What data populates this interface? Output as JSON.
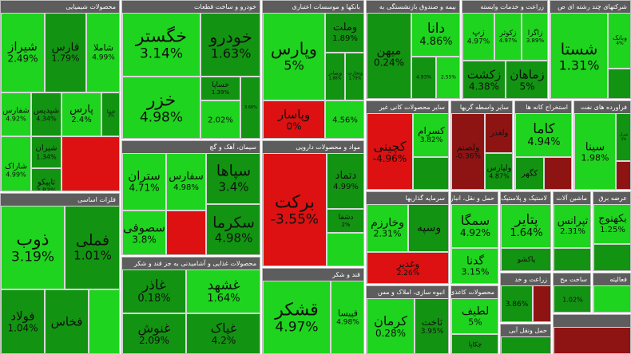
{
  "colors": {
    "strong_up": "#1ed41e",
    "up": "#129412",
    "strong_down": "#dd1111",
    "down": "#8e1414",
    "header": "#5d5d5d",
    "separator": "#dcdcdc"
  },
  "groups": [
    {
      "id": "g1",
      "title": "محصولات شیمیایی",
      "tiles": [
        {
          "n": "شیراز",
          "p": "2.49%",
          "c": "strong_up"
        },
        {
          "n": "فارس",
          "p": "1.79%",
          "c": "up"
        },
        {
          "n": "شاملا",
          "p": "4.99%",
          "c": "strong_up"
        },
        {
          "n": "شفارس",
          "p": "4.92%",
          "c": "strong_up"
        },
        {
          "n": "شپدیس",
          "p": "4.34%",
          "c": "up"
        },
        {
          "n": "پارس",
          "p": "2.4%",
          "c": "strong_up"
        },
        {
          "n": "شپنا",
          "p": "3%",
          "c": "up"
        },
        {
          "n": "شاراک",
          "p": "4.99%",
          "c": "strong_up"
        },
        {
          "n": "شیران",
          "p": "1.34%",
          "c": "up"
        },
        {
          "n": "تاپیکو",
          "p": "2.83%",
          "c": "up"
        },
        {
          "n": "",
          "p": "",
          "c": "strong_down"
        }
      ]
    },
    {
      "id": "g2",
      "title": "خودرو و ساخت قطعات",
      "tiles": [
        {
          "n": "خگستر",
          "p": "3.14%",
          "c": "strong_up"
        },
        {
          "n": "خزر",
          "p": "4.98%",
          "c": "strong_up"
        },
        {
          "n": "خودرو",
          "p": "1.63%",
          "c": "up"
        },
        {
          "n": "خساپا",
          "p": "1.39%",
          "c": "up"
        },
        {
          "n": "",
          "p": "2.02%",
          "c": "strong_up"
        },
        {
          "n": "",
          "p": "3.66%",
          "c": "up"
        }
      ]
    },
    {
      "id": "g3",
      "title": "بانکها و موسسات اعتباری",
      "tiles": [
        {
          "n": "وپارس",
          "p": "5%",
          "c": "strong_up"
        },
        {
          "n": "وملت",
          "p": "1.89%",
          "c": "up"
        },
        {
          "n": "وبصادر",
          "p": "1.88%",
          "c": "up"
        },
        {
          "n": "وتجارت",
          "p": "1.79%",
          "c": "up"
        },
        {
          "n": "وپاسار",
          "p": "0%",
          "c": "strong_down"
        },
        {
          "n": "",
          "p": "4.56%",
          "c": "strong_up"
        }
      ]
    },
    {
      "id": "g4",
      "title": "بیمه و صندوق بازنشستگی به",
      "tiles": [
        {
          "n": "میهن",
          "p": "0.24%",
          "c": "up"
        },
        {
          "n": "دانا",
          "p": "4.86%",
          "c": "strong_up"
        },
        {
          "n": "",
          "p": "4.93%",
          "c": "up"
        },
        {
          "n": "",
          "p": "2.55%",
          "c": "strong_up"
        }
      ]
    },
    {
      "id": "g5",
      "title": "زراعت و خدمات وابسته",
      "tiles": [
        {
          "n": "زپ",
          "p": "4.97%",
          "c": "strong_up"
        },
        {
          "n": "زکوثر",
          "p": "4.97%",
          "c": "strong_up"
        },
        {
          "n": "زاگرا",
          "p": "3.89%",
          "c": "strong_up"
        },
        {
          "n": "زکشت",
          "p": "4.38%",
          "c": "up"
        },
        {
          "n": "زماهان",
          "p": "5%",
          "c": "up"
        }
      ]
    },
    {
      "id": "g6",
      "title": "شرکتهای چند رشته ای ص",
      "tiles": [
        {
          "n": "شستا",
          "p": "1.31%",
          "c": "strong_up"
        },
        {
          "n": "وبانک",
          "p": "4%",
          "c": "strong_up"
        },
        {
          "n": "",
          "p": "",
          "c": "up"
        }
      ]
    },
    {
      "id": "g7",
      "title": "سیمان، آهک و گچ",
      "tiles": [
        {
          "n": "ستران",
          "p": "4.71%",
          "c": "strong_up"
        },
        {
          "n": "سفارس",
          "p": "4.98%",
          "c": "strong_up"
        },
        {
          "n": "سصوفی",
          "p": "3.8%",
          "c": "strong_up"
        },
        {
          "n": "سپاها",
          "p": "3.4%",
          "c": "up"
        },
        {
          "n": "سکرما",
          "p": "4.98%",
          "c": "up"
        },
        {
          "n": "",
          "p": "",
          "c": "strong_down"
        }
      ]
    },
    {
      "id": "g8",
      "title": "مواد و محصولات دارویی",
      "tiles": [
        {
          "n": "برکت",
          "p": "-3.55%",
          "c": "strong_down"
        },
        {
          "n": "دتماد",
          "p": "4.99%",
          "c": "up"
        },
        {
          "n": "دشفا",
          "p": "2%",
          "c": "up"
        },
        {
          "n": "",
          "p": "",
          "c": "strong_up"
        }
      ]
    },
    {
      "id": "g9",
      "title": "سایر محصولات کانی غیر",
      "tiles": [
        {
          "n": "کچینی",
          "p": "-4.96%",
          "c": "strong_down"
        },
        {
          "n": "کسرام",
          "p": "3.82%",
          "c": "strong_up"
        },
        {
          "n": "",
          "p": "",
          "c": "up"
        }
      ]
    },
    {
      "id": "g10",
      "title": "سایر واسطه گریها",
      "tiles": [
        {
          "n": "ولصنم",
          "p": "-0.36%",
          "c": "down"
        },
        {
          "n": "ولغدر",
          "p": "",
          "c": "down"
        },
        {
          "n": "ولپارس",
          "p": "4.87%",
          "c": "up"
        }
      ]
    },
    {
      "id": "g11",
      "title": "استخراج کانه ها",
      "tiles": [
        {
          "n": "کاما",
          "p": "4.94%",
          "c": "strong_up"
        },
        {
          "n": "کگهر",
          "p": "",
          "c": "up"
        },
        {
          "n": "",
          "p": "",
          "c": "down"
        }
      ]
    },
    {
      "id": "g12",
      "title": "فراورده های نفت",
      "tiles": [
        {
          "n": "سینا",
          "p": "1.98%",
          "c": "strong_up"
        },
        {
          "n": "شراز",
          "p": "5%",
          "c": "up"
        },
        {
          "n": "",
          "p": "",
          "c": "down"
        }
      ]
    },
    {
      "id": "g13",
      "title": "فلزات اساسی",
      "tiles": [
        {
          "n": "ذوب",
          "p": "3.19%",
          "c": "strong_up"
        },
        {
          "n": "فملی",
          "p": "1.01%",
          "c": "up"
        },
        {
          "n": "فولاد",
          "p": "1.04%",
          "c": "up"
        },
        {
          "n": "فخاس",
          "p": "",
          "c": "up"
        },
        {
          "n": "",
          "p": "",
          "c": "strong_up"
        }
      ]
    },
    {
      "id": "g14",
      "title": "محصولات غذایی و آشامیدنی به جز قند و شکر",
      "tiles": [
        {
          "n": "غاذر",
          "p": "0.18%",
          "c": "up"
        },
        {
          "n": "غشهد",
          "p": "1.64%",
          "c": "strong_up"
        },
        {
          "n": "غنوش",
          "p": "2.09%",
          "c": "up"
        },
        {
          "n": "غکلستا",
          "p": "",
          "c": "strong_down"
        },
        {
          "n": "غپاک",
          "p": "4.2%",
          "c": "up"
        }
      ]
    },
    {
      "id": "g15",
      "title": "قند و شکر",
      "tiles": [
        {
          "n": "قشکر",
          "p": "4.97%",
          "c": "strong_up"
        },
        {
          "n": "قپیسا",
          "p": "4.98%",
          "c": "strong_up"
        }
      ]
    },
    {
      "id": "g16",
      "title": "سرمایه گذاریها",
      "tiles": [
        {
          "n": "وخارزم",
          "p": "2.31%",
          "c": "strong_up"
        },
        {
          "n": "وسپه",
          "p": "",
          "c": "up"
        },
        {
          "n": "وغدیر",
          "p": "2.26%",
          "c": "strong_down"
        }
      ]
    },
    {
      "id": "g17",
      "title": "حمل و نقل، انبارداری",
      "tiles": [
        {
          "n": "سمگا",
          "p": "4.92%",
          "c": "strong_up"
        },
        {
          "n": "گدنا",
          "p": "3.15%",
          "c": "strong_up"
        }
      ]
    },
    {
      "id": "g18",
      "title": "لاستیک و پلاستیک",
      "tiles": [
        {
          "n": "پتایر",
          "p": "1.64%",
          "c": "strong_up"
        },
        {
          "n": "پاکشو",
          "p": "",
          "c": "up"
        }
      ]
    },
    {
      "id": "g19",
      "title": "ماشین آلات",
      "tiles": [
        {
          "n": "تپرانس",
          "p": "2.31%",
          "c": "strong_up"
        },
        {
          "n": "",
          "p": "",
          "c": "up"
        }
      ]
    },
    {
      "id": "g20",
      "title": "عرضه برق",
      "tiles": [
        {
          "n": "بکهنوج",
          "p": "1.25%",
          "c": "strong_up"
        },
        {
          "n": "",
          "p": "",
          "c": "up"
        }
      ]
    },
    {
      "id": "g21",
      "title": "انبوه سازی، املاک و مس",
      "tiles": [
        {
          "n": "کرمان",
          "p": "0.28%",
          "c": "strong_up"
        },
        {
          "n": "ثاخت",
          "p": "3.95%",
          "c": "up"
        }
      ]
    },
    {
      "id": "g22",
      "title": "محصولات کاغذی",
      "tiles": [
        {
          "n": "لطیف",
          "p": "5%",
          "c": "strong_up"
        },
        {
          "n": "چکاپا",
          "p": "",
          "c": "up"
        }
      ]
    },
    {
      "id": "g23",
      "title": "زراعت و خد",
      "tiles": [
        {
          "n": "",
          "p": "3.86%",
          "c": "up"
        },
        {
          "n": "",
          "p": "",
          "c": "down"
        }
      ]
    },
    {
      "id": "g24",
      "title": "ساخت مح",
      "tiles": [
        {
          "n": "",
          "p": "1.02%",
          "c": "up"
        }
      ]
    },
    {
      "id": "g25",
      "title": "فعالیته",
      "tiles": [
        {
          "n": "",
          "p": "",
          "c": "strong_up"
        }
      ]
    },
    {
      "id": "g26",
      "title": "حمل ونقل آبی",
      "tiles": [
        {
          "n": "",
          "p": "",
          "c": "up"
        }
      ]
    },
    {
      "id": "g27",
      "title": "",
      "tiles": [
        {
          "n": "",
          "p": "",
          "c": "down"
        }
      ]
    }
  ]
}
